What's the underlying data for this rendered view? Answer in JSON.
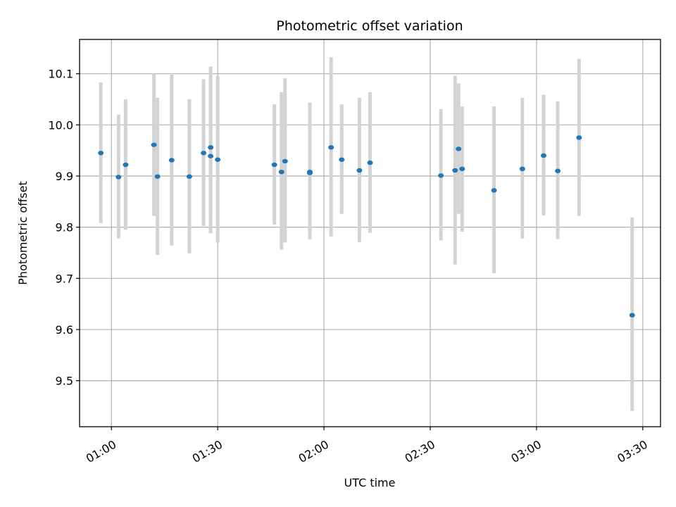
{
  "chart_data": {
    "type": "scatter",
    "title": "Photometric offset variation",
    "xlabel": "UTC time",
    "ylabel": "Photometric offset",
    "x_ticks": [
      "01:00",
      "01:30",
      "02:00",
      "02:30",
      "03:00",
      "03:30"
    ],
    "y_ticks": [
      "9.5",
      "9.6",
      "9.7",
      "9.8",
      "9.9",
      "10.0",
      "10.1"
    ],
    "xlim": [
      "00:51",
      "03:35"
    ],
    "ylim": [
      9.41,
      10.167
    ],
    "grid": true,
    "colors": {
      "point": "#1f77b4",
      "error_bar": "#d3d3d3",
      "grid": "#b0b0b0"
    },
    "series": [
      {
        "error_bars": true,
        "points": [
          {
            "x": "00:57",
            "y": 9.945,
            "ylow": 9.808,
            "yhigh": 10.083
          },
          {
            "x": "01:02",
            "y": 9.898,
            "ylow": 9.778,
            "yhigh": 10.02
          },
          {
            "x": "01:04",
            "y": 9.922,
            "ylow": 9.795,
            "yhigh": 10.05
          },
          {
            "x": "01:12",
            "y": 9.961,
            "ylow": 9.822,
            "yhigh": 10.1
          },
          {
            "x": "01:13",
            "y": 9.899,
            "ylow": 9.746,
            "yhigh": 10.053
          },
          {
            "x": "01:17",
            "y": 9.931,
            "ylow": 9.764,
            "yhigh": 10.098
          },
          {
            "x": "01:22",
            "y": 9.899,
            "ylow": 9.749,
            "yhigh": 10.05
          },
          {
            "x": "01:26",
            "y": 9.945,
            "ylow": 9.802,
            "yhigh": 10.089
          },
          {
            "x": "01:28",
            "y": 9.956,
            "ylow": 9.82,
            "yhigh": 10.114
          },
          {
            "x": "01:28",
            "y": 9.939,
            "ylow": 9.788,
            "yhigh": 10.092
          },
          {
            "x": "01:30",
            "y": 9.932,
            "ylow": 9.77,
            "yhigh": 10.095
          },
          {
            "x": "01:46",
            "y": 9.922,
            "ylow": 9.805,
            "yhigh": 10.04
          },
          {
            "x": "01:48",
            "y": 9.908,
            "ylow": 9.756,
            "yhigh": 10.064
          },
          {
            "x": "01:49",
            "y": 9.929,
            "ylow": 9.77,
            "yhigh": 10.091
          },
          {
            "x": "01:56",
            "y": 9.908,
            "ylow": 9.776,
            "yhigh": 10.044
          },
          {
            "x": "01:56",
            "y": 9.906,
            "ylow": 9.776,
            "yhigh": 10.04
          },
          {
            "x": "02:02",
            "y": 9.956,
            "ylow": 9.782,
            "yhigh": 10.132
          },
          {
            "x": "02:05",
            "y": 9.932,
            "ylow": 9.826,
            "yhigh": 10.04
          },
          {
            "x": "02:10",
            "y": 9.911,
            "ylow": 9.771,
            "yhigh": 10.053
          },
          {
            "x": "02:13",
            "y": 9.926,
            "ylow": 9.789,
            "yhigh": 10.064
          },
          {
            "x": "02:33",
            "y": 9.901,
            "ylow": 9.774,
            "yhigh": 10.031
          },
          {
            "x": "02:37",
            "y": 9.911,
            "ylow": 9.727,
            "yhigh": 10.096
          },
          {
            "x": "02:38",
            "y": 9.953,
            "ylow": 9.826,
            "yhigh": 10.081
          },
          {
            "x": "02:39",
            "y": 9.914,
            "ylow": 9.791,
            "yhigh": 10.036
          },
          {
            "x": "02:48",
            "y": 9.872,
            "ylow": 9.71,
            "yhigh": 10.036
          },
          {
            "x": "02:56",
            "y": 9.914,
            "ylow": 9.778,
            "yhigh": 10.053
          },
          {
            "x": "03:02",
            "y": 9.94,
            "ylow": 9.823,
            "yhigh": 10.059
          },
          {
            "x": "03:06",
            "y": 9.91,
            "ylow": 9.777,
            "yhigh": 10.046
          },
          {
            "x": "03:12",
            "y": 9.975,
            "ylow": 9.822,
            "yhigh": 10.129
          },
          {
            "x": "03:27",
            "y": 9.628,
            "ylow": 9.441,
            "yhigh": 9.819
          }
        ]
      }
    ]
  }
}
